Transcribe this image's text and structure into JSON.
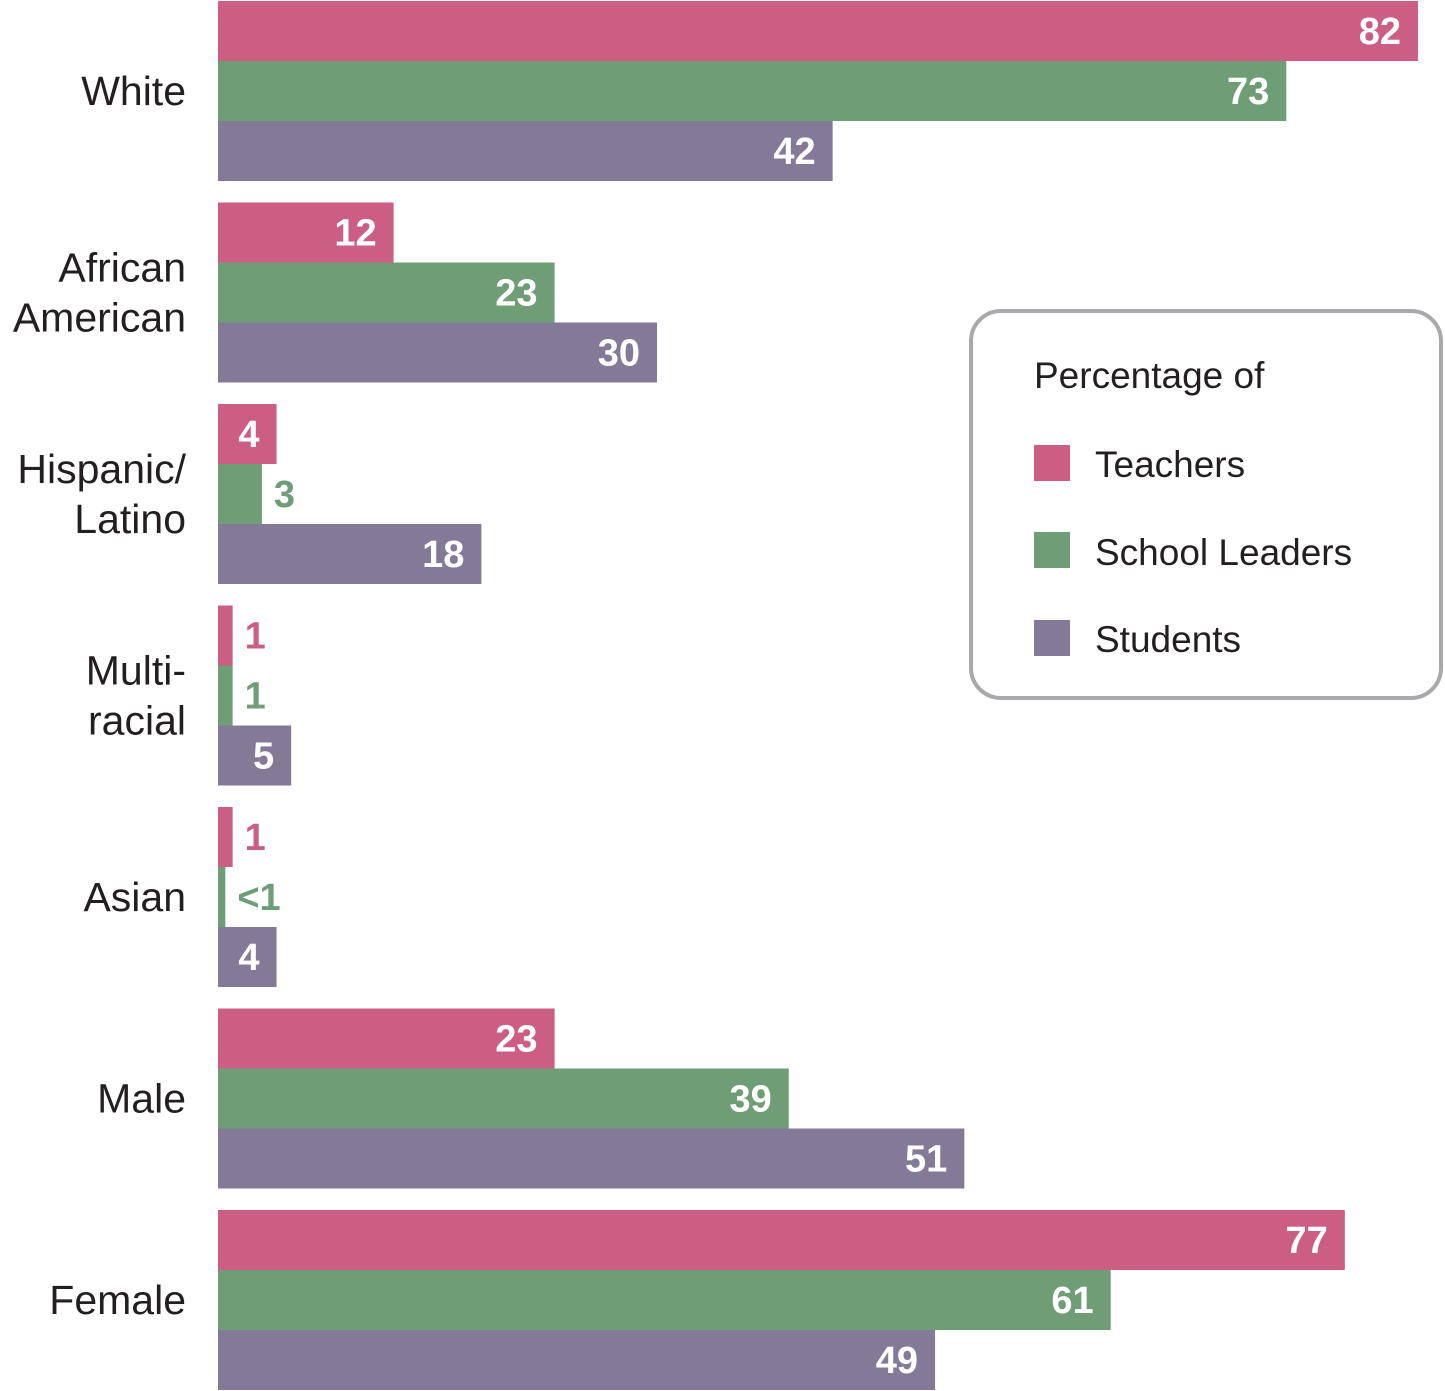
{
  "chart_data": {
    "type": "bar",
    "orientation": "horizontal",
    "categories": [
      [
        "White"
      ],
      [
        "African",
        "American"
      ],
      [
        "Hispanic/",
        "Latino"
      ],
      [
        "Multi-",
        "racial"
      ],
      [
        "Asian"
      ],
      [
        "Male"
      ],
      [
        "Female"
      ]
    ],
    "series": [
      {
        "name": "Teachers",
        "color": "#cc5e83",
        "values": [
          82,
          12,
          4,
          1,
          1,
          23,
          77
        ],
        "labels": [
          "82",
          "12",
          "4",
          "1",
          "1",
          "23",
          "77"
        ]
      },
      {
        "name": "School Leaders",
        "color": "#6f9d76",
        "values": [
          73,
          23,
          3,
          1,
          0.5,
          39,
          61
        ],
        "labels": [
          "73",
          "23",
          "3",
          "1",
          "<1",
          "39",
          "61"
        ]
      },
      {
        "name": "Students",
        "color": "#847a98",
        "values": [
          42,
          30,
          18,
          5,
          4,
          51,
          49
        ],
        "labels": [
          "42",
          "30",
          "18",
          "5",
          "4",
          "51",
          "49"
        ]
      }
    ],
    "xlim": [
      0,
      82
    ],
    "grid": false,
    "legend": {
      "title": "Percentage of",
      "position": "right"
    }
  }
}
